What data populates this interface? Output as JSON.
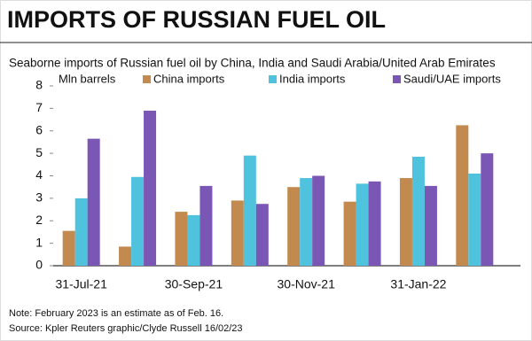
{
  "chart_data": {
    "type": "bar",
    "title": "IMPORTS OF RUSSIAN FUEL OIL",
    "subtitle": "Seaborne imports of Russian fuel oil by China, India and Saudi Arabia/United Arab Emirates",
    "y_label": "Mln barrels",
    "categories": [
      "31-Jul-21",
      null,
      "30-Sep-21",
      null,
      "30-Nov-21",
      null,
      "31-Jan-22",
      null
    ],
    "series": [
      {
        "name": "China imports",
        "color": "#c28a4e",
        "values": [
          1.55,
          0.85,
          2.4,
          2.9,
          3.5,
          2.85,
          3.9,
          6.25
        ]
      },
      {
        "name": "India imports",
        "color": "#4fc3de",
        "values": [
          3.0,
          3.95,
          2.25,
          4.9,
          3.9,
          3.65,
          4.85,
          4.1
        ]
      },
      {
        "name": "Saudi/UAE imports",
        "color": "#7b57b5",
        "values": [
          5.65,
          6.9,
          3.55,
          2.75,
          4.0,
          3.75,
          3.55,
          5.0
        ]
      }
    ],
    "ylim": [
      0,
      8
    ],
    "yticks": [
      0,
      1,
      2,
      3,
      4,
      5,
      6,
      7,
      8
    ],
    "notes": [
      "Note: February 2023 is an estimate as of Feb. 16.",
      "Source: Kpler    Reuters graphic/Clyde Russell 16/02/23"
    ]
  }
}
